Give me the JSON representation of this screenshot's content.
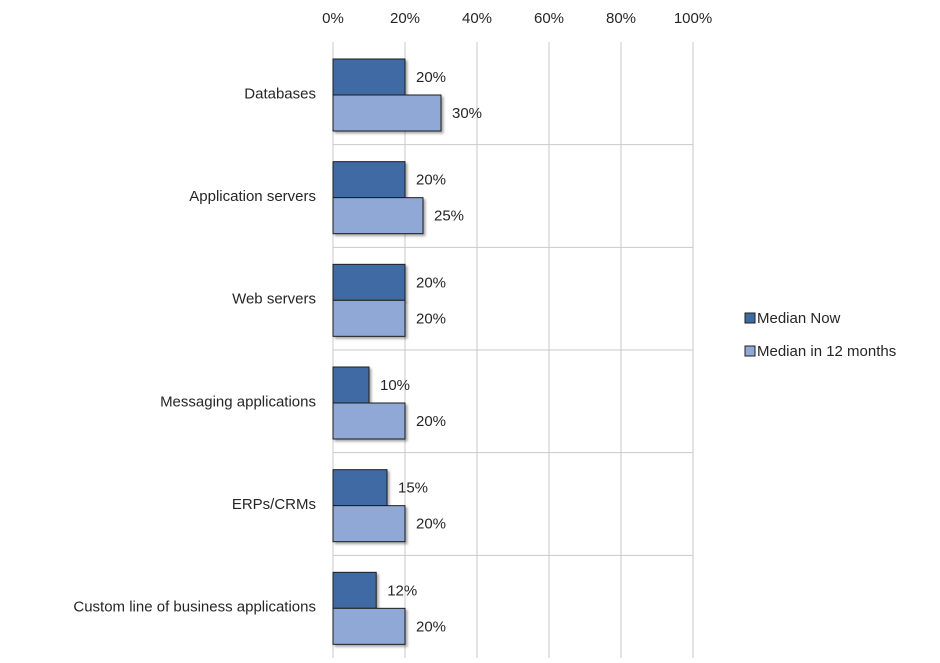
{
  "chart_data": {
    "type": "bar",
    "orientation": "horizontal",
    "categories": [
      "Databases",
      "Application servers",
      "Web servers",
      "Messaging applications",
      "ERPs/CRMs",
      "Custom line of business applications"
    ],
    "series": [
      {
        "name": "Median Now",
        "color": "#3f6ba3",
        "values": [
          20,
          20,
          20,
          10,
          15,
          12
        ],
        "labels": [
          "20%",
          "20%",
          "20%",
          "10%",
          "15%",
          "12%"
        ]
      },
      {
        "name": "Median in 12 months",
        "color": "#8fa8d6",
        "values": [
          30,
          25,
          20,
          20,
          20,
          20
        ],
        "labels": [
          "30%",
          "25%",
          "20%",
          "20%",
          "20%",
          "20%"
        ]
      }
    ],
    "x_ticks": [
      "0%",
      "20%",
      "40%",
      "60%",
      "80%",
      "100%"
    ],
    "xlim": [
      0,
      100
    ],
    "axis_position": "top",
    "grid": true,
    "legend_position": "right",
    "title": "",
    "xlabel": "",
    "ylabel": ""
  }
}
